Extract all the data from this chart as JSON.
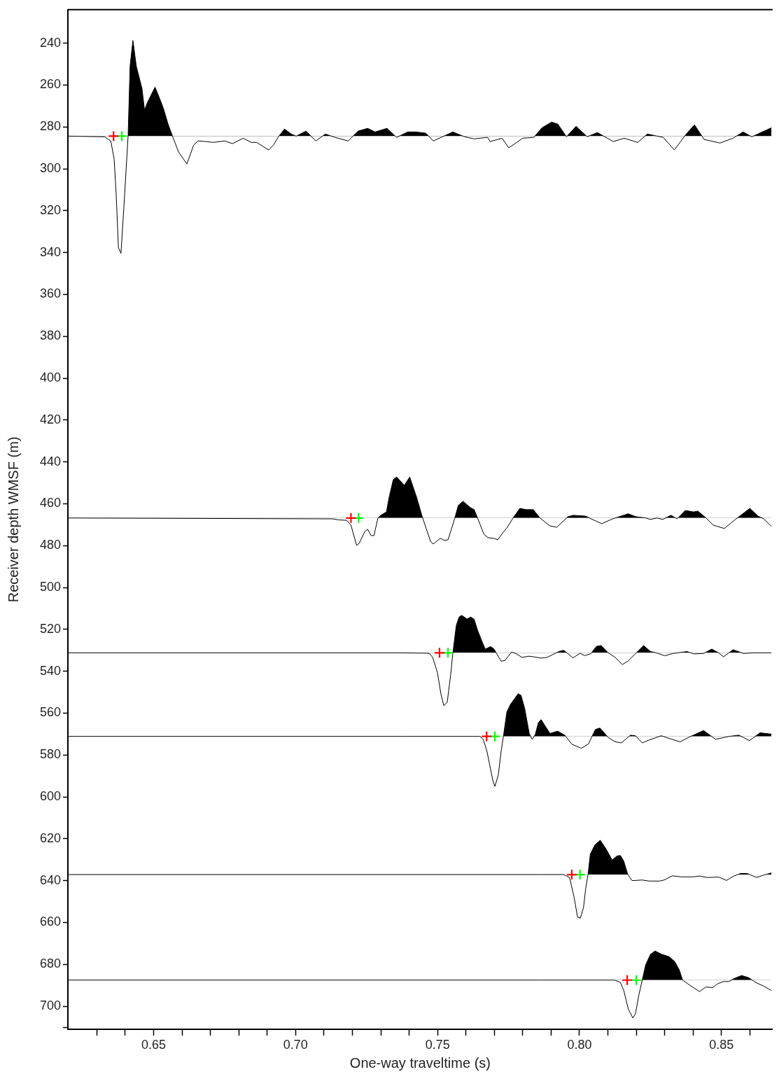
{
  "chart_data": {
    "type": "area",
    "xlabel": "One-way traveltime (s)",
    "ylabel": "Receiver depth WMSF (m)",
    "grid": false,
    "legend": false,
    "xlim": [
      0.6198,
      0.868
    ],
    "ylim": [
      711,
      224
    ],
    "xticks": [
      {
        "value": 0.63,
        "label": null
      },
      {
        "value": 0.64,
        "label": null
      },
      {
        "value": 0.65,
        "label": "0.65"
      },
      {
        "value": 0.66,
        "label": null
      },
      {
        "value": 0.67,
        "label": null
      },
      {
        "value": 0.68,
        "label": null
      },
      {
        "value": 0.69,
        "label": null
      },
      {
        "value": 0.7,
        "label": "0.70"
      },
      {
        "value": 0.71,
        "label": null
      },
      {
        "value": 0.72,
        "label": null
      },
      {
        "value": 0.73,
        "label": null
      },
      {
        "value": 0.74,
        "label": null
      },
      {
        "value": 0.75,
        "label": "0.75"
      },
      {
        "value": 0.76,
        "label": null
      },
      {
        "value": 0.77,
        "label": null
      },
      {
        "value": 0.78,
        "label": null
      },
      {
        "value": 0.79,
        "label": null
      },
      {
        "value": 0.8,
        "label": "0.80"
      },
      {
        "value": 0.81,
        "label": null
      },
      {
        "value": 0.82,
        "label": null
      },
      {
        "value": 0.83,
        "label": null
      },
      {
        "value": 0.84,
        "label": null
      },
      {
        "value": 0.85,
        "label": "0.85"
      },
      {
        "value": 0.86,
        "label": null
      }
    ],
    "yticks": [
      240,
      260,
      280,
      300,
      320,
      340,
      360,
      380,
      400,
      420,
      440,
      460,
      480,
      500,
      520,
      540,
      560,
      580,
      600,
      620,
      640,
      660,
      680,
      700,
      {
        "value": 710,
        "label": null
      }
    ],
    "series": [
      {
        "color": "#000000",
        "x": [
          0.62,
          0.6327,
          0.6349,
          0.6361,
          0.6368,
          0.6376,
          0.6385,
          0.6398,
          0.641,
          0.6417,
          0.6427,
          0.6439,
          0.6459,
          0.6468,
          0.6478,
          0.6505,
          0.6522,
          0.6534,
          0.6551,
          0.6568,
          0.6588,
          0.6617,
          0.6641,
          0.6656,
          0.6685,
          0.671,
          0.6751,
          0.6778,
          0.6815,
          0.6844,
          0.6863,
          0.6905,
          0.6922,
          0.6941,
          0.6961,
          0.6985,
          0.7002,
          0.7012,
          0.7037,
          0.7071,
          0.7105,
          0.7139,
          0.7185,
          0.722,
          0.7254,
          0.728,
          0.7322,
          0.7356,
          0.7395,
          0.7424,
          0.7459,
          0.7485,
          0.7554,
          0.7595,
          0.7629,
          0.7676,
          0.7685,
          0.7727,
          0.7751,
          0.78,
          0.7839,
          0.7868,
          0.7902,
          0.7924,
          0.7954,
          0.7988,
          0.8027,
          0.8063,
          0.8119,
          0.8158,
          0.8205,
          0.8239,
          0.8295,
          0.8334,
          0.8376,
          0.8405,
          0.8439,
          0.8495,
          0.8541,
          0.8576,
          0.8607,
          0.8676
        ],
        "values": [
          284.4,
          284.7,
          286.7,
          295.4,
          312.1,
          337.7,
          340.4,
          312.1,
          284.4,
          251.0,
          238.7,
          251.0,
          261.7,
          272.0,
          268.4,
          261.0,
          266.7,
          271.0,
          278.7,
          285.0,
          292.0,
          297.7,
          288.7,
          286.7,
          287.0,
          287.4,
          286.7,
          288.0,
          285.4,
          287.4,
          287.4,
          291.0,
          288.7,
          284.4,
          281.0,
          283.4,
          284.4,
          283.7,
          282.0,
          286.7,
          283.4,
          285.0,
          286.7,
          282.0,
          280.7,
          282.4,
          280.7,
          285.0,
          282.4,
          282.4,
          283.0,
          286.7,
          282.4,
          284.7,
          285.7,
          285.0,
          287.0,
          285.4,
          290.0,
          285.4,
          285.0,
          280.4,
          277.7,
          278.7,
          284.7,
          279.7,
          284.7,
          282.7,
          287.0,
          285.4,
          287.4,
          283.4,
          285.0,
          291.0,
          283.4,
          279.0,
          286.0,
          287.7,
          285.4,
          282.4,
          284.7,
          280.4
        ]
      },
      {
        "color": "#000000",
        "x": [
          0.62,
          0.7132,
          0.7151,
          0.718,
          0.7195,
          0.7215,
          0.7224,
          0.7244,
          0.7254,
          0.7266,
          0.7276,
          0.729,
          0.73,
          0.732,
          0.7329,
          0.7344,
          0.7356,
          0.7383,
          0.7402,
          0.7427,
          0.7446,
          0.7461,
          0.7476,
          0.7485,
          0.751,
          0.7524,
          0.7537,
          0.7561,
          0.7573,
          0.759,
          0.7615,
          0.7629,
          0.7641,
          0.7663,
          0.7678,
          0.7698,
          0.7712,
          0.7732,
          0.7746,
          0.7766,
          0.779,
          0.7812,
          0.7837,
          0.7861,
          0.7895,
          0.792,
          0.7959,
          0.7978,
          0.8022,
          0.8041,
          0.8078,
          0.8117,
          0.8171,
          0.82,
          0.8234,
          0.8249,
          0.8273,
          0.8293,
          0.8322,
          0.8344,
          0.8373,
          0.8402,
          0.8417,
          0.8446,
          0.8471,
          0.851,
          0.8549,
          0.86,
          0.8629,
          0.8649,
          0.8676
        ],
        "values": [
          466.8,
          467.2,
          467.7,
          467.9,
          470.2,
          479.9,
          478.9,
          473.2,
          472.2,
          475.2,
          475.2,
          466.8,
          465.5,
          463.9,
          457.2,
          448.5,
          447.2,
          451.2,
          447.2,
          457.2,
          466.2,
          472.2,
          478.2,
          479.2,
          476.5,
          477.5,
          477.2,
          466.8,
          460.8,
          458.8,
          461.8,
          462.8,
          466.8,
          474.5,
          476.2,
          476.5,
          477.2,
          473.5,
          471.2,
          466.8,
          462.2,
          462.8,
          462.8,
          466.8,
          470.5,
          471.2,
          466.2,
          465.5,
          465.9,
          467.2,
          469.5,
          467.2,
          464.8,
          466.2,
          466.8,
          467.5,
          466.8,
          467.5,
          465.5,
          467.2,
          463.2,
          463.9,
          463.5,
          466.8,
          470.2,
          471.8,
          467.5,
          462.2,
          465.9,
          467.2,
          470.8
        ]
      },
      {
        "color": "#000000",
        "x": [
          0.62,
          0.7376,
          0.7471,
          0.7483,
          0.75,
          0.7512,
          0.7522,
          0.7534,
          0.7546,
          0.7554,
          0.7566,
          0.7576,
          0.7585,
          0.7604,
          0.7617,
          0.7629,
          0.7641,
          0.7659,
          0.7668,
          0.7687,
          0.7699,
          0.7724,
          0.7737,
          0.7761,
          0.7778,
          0.7798,
          0.782,
          0.7839,
          0.7865,
          0.7885,
          0.7906,
          0.7927,
          0.7944,
          0.7956,
          0.7977,
          0.8002,
          0.8018,
          0.8039,
          0.806,
          0.8076,
          0.8101,
          0.8126,
          0.8151,
          0.8171,
          0.82,
          0.8226,
          0.825,
          0.8271,
          0.83,
          0.8329,
          0.8378,
          0.8404,
          0.8437,
          0.8466,
          0.849,
          0.8507,
          0.8541,
          0.8578,
          0.8611,
          0.8676
        ],
        "values": [
          531.2,
          531.2,
          531.4,
          533.4,
          540.9,
          550.9,
          556.4,
          554.9,
          541.9,
          531.2,
          518.1,
          514.1,
          513.3,
          515.0,
          514.1,
          515.2,
          520.4,
          526.6,
          529.4,
          528.2,
          529.4,
          535.2,
          534.9,
          530.8,
          531.7,
          533.4,
          532.8,
          533.1,
          533.7,
          533.4,
          532.0,
          530.6,
          530.0,
          531.2,
          533.6,
          531.4,
          532.5,
          531.7,
          528.1,
          527.7,
          531.2,
          533.4,
          536.8,
          535.1,
          531.2,
          527.7,
          530.6,
          531.2,
          532.6,
          531.5,
          530.6,
          531.7,
          531.5,
          529.4,
          531.2,
          533.1,
          529.7,
          531.5,
          531.2,
          531.2
        ]
      },
      {
        "color": "#000000",
        "x": [
          0.62,
          0.7376,
          0.7649,
          0.7661,
          0.7674,
          0.7695,
          0.7702,
          0.7714,
          0.7724,
          0.7732,
          0.7744,
          0.7757,
          0.7784,
          0.7794,
          0.7807,
          0.7823,
          0.7833,
          0.7844,
          0.7855,
          0.7865,
          0.7877,
          0.7896,
          0.7923,
          0.7948,
          0.7973,
          0.8006,
          0.8031,
          0.8056,
          0.8072,
          0.8101,
          0.8126,
          0.8147,
          0.818,
          0.8197,
          0.8221,
          0.8246,
          0.8288,
          0.8321,
          0.8354,
          0.8387,
          0.8437,
          0.8479,
          0.8528,
          0.8561,
          0.8599,
          0.8636,
          0.8676
        ],
        "values": [
          571.1,
          571.1,
          571.1,
          572.5,
          578.2,
          592.3,
          595.0,
          589.5,
          578.2,
          571.1,
          559.5,
          555.8,
          550.7,
          551.5,
          557.8,
          569.7,
          572.5,
          570.3,
          564.6,
          563.1,
          565.7,
          569.7,
          568.6,
          570.5,
          574.8,
          576.8,
          574.8,
          567.8,
          567.1,
          571.6,
          573.7,
          574.2,
          570.5,
          570.8,
          574.2,
          572.8,
          570.8,
          572.3,
          573.7,
          571.4,
          568.3,
          572.5,
          571.1,
          570.5,
          573.1,
          569.4,
          570.0
        ]
      },
      {
        "color": "#000000",
        "x": [
          0.62,
          0.7863,
          0.7944,
          0.7965,
          0.7981,
          0.7993,
          0.8003,
          0.8014,
          0.8022,
          0.803,
          0.8038,
          0.8054,
          0.8073,
          0.8095,
          0.8115,
          0.8132,
          0.8144,
          0.8156,
          0.817,
          0.8185,
          0.8221,
          0.8246,
          0.8282,
          0.8298,
          0.8327,
          0.8359,
          0.84,
          0.8424,
          0.8449,
          0.849,
          0.8518,
          0.8542,
          0.8567,
          0.8591,
          0.8624,
          0.8648,
          0.8676
        ],
        "values": [
          637.1,
          637.1,
          637.1,
          638.5,
          647.9,
          657.4,
          657.9,
          652.9,
          643.6,
          637.1,
          627.4,
          623.0,
          620.7,
          625.2,
          630.2,
          628.2,
          628.0,
          630.7,
          637.1,
          640.0,
          639.7,
          640.2,
          640.2,
          639.7,
          637.7,
          638.2,
          638.2,
          637.8,
          638.5,
          638.3,
          639.9,
          637.9,
          636.6,
          636.6,
          638.5,
          637.4,
          636.3
        ]
      },
      {
        "color": "#000000",
        "x": [
          0.62,
          0.7863,
          0.8124,
          0.8144,
          0.8156,
          0.8172,
          0.8188,
          0.8197,
          0.8209,
          0.8221,
          0.8233,
          0.825,
          0.8266,
          0.829,
          0.8315,
          0.8335,
          0.8351,
          0.8363,
          0.8392,
          0.8423,
          0.8445,
          0.8469,
          0.8485,
          0.8506,
          0.8526,
          0.8546,
          0.8571,
          0.8595,
          0.8624,
          0.8648,
          0.8676
        ],
        "values": [
          687.5,
          687.5,
          687.5,
          688.6,
          692.5,
          701.4,
          705.6,
          703.6,
          694.7,
          687.5,
          680.2,
          675.2,
          673.6,
          675.2,
          676.3,
          678.6,
          682.5,
          687.5,
          690.3,
          693.0,
          690.8,
          691.1,
          689.4,
          688.2,
          688.2,
          686.7,
          685.3,
          686.3,
          688.9,
          690.3,
          692.5
        ]
      },
      {
        "type": "scatter",
        "color": "#ff0000",
        "marker": "cross",
        "x": [
          0.6359,
          0.7195,
          0.7507,
          0.7673,
          0.7973,
          0.8168
        ],
        "values": [
          284.4,
          466.8,
          531.2,
          571.1,
          637.1,
          687.5
        ]
      },
      {
        "type": "scatter",
        "color": "#00ff00",
        "marker": "cross",
        "x": [
          0.6388,
          0.7222,
          0.7537,
          0.7702,
          0.8002,
          0.82
        ],
        "values": [
          284.4,
          466.8,
          531.2,
          571.1,
          637.1,
          687.5
        ]
      }
    ]
  }
}
